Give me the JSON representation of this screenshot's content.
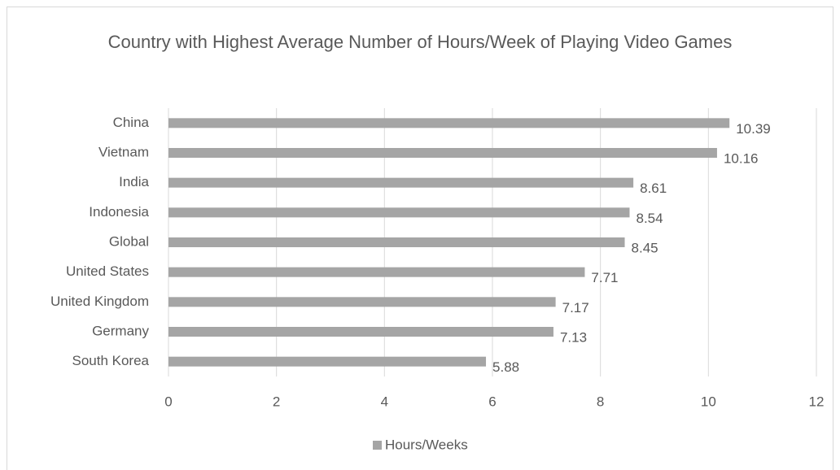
{
  "chart_data": {
    "type": "bar",
    "orientation": "horizontal",
    "title": "Country with Highest Average Number of Hours/Week of Playing Video Games",
    "categories": [
      "China",
      "Vietnam",
      "India",
      "Indonesia",
      "Global",
      "United States",
      "United Kingdom",
      "Germany",
      "South Korea"
    ],
    "series": [
      {
        "name": "Hours/Weeks",
        "color": "#a5a5a5",
        "values": [
          10.39,
          10.16,
          8.61,
          8.54,
          8.45,
          7.71,
          7.17,
          7.13,
          5.88
        ]
      }
    ],
    "xlim": [
      0,
      12
    ],
    "xticks": [
      0,
      2,
      4,
      6,
      8,
      10,
      12
    ],
    "grid": true,
    "legend": "bottom"
  }
}
